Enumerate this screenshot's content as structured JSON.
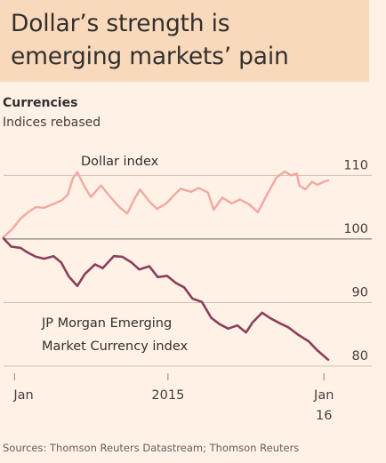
{
  "header": {
    "headline_line1": "Dollar’s strength is",
    "headline_line2": "emerging markets’ pain"
  },
  "subtitle": "Currencies",
  "subsubtitle": "Indices rebased",
  "source": "Sources: Thomson Reuters Datastream; Thomson Reuters",
  "colors": {
    "background": "#fff1e5",
    "headline_box": "#f9d9bb",
    "dollar": "#f2a8a0",
    "em": "#8c3e5c",
    "grid": "#ccc1b7",
    "baseline": "#8a8580"
  },
  "chart_data": {
    "type": "line",
    "ylim": [
      80,
      112
    ],
    "yticks": [
      80,
      90,
      100,
      110
    ],
    "grid": true,
    "xlim": [
      "2014-12-19",
      "2016-01-06"
    ],
    "xticks": [
      {
        "date": "2015-01-01",
        "label": "Jan"
      },
      {
        "date": "2015-07-01",
        "label": "2015"
      },
      {
        "date": "2016-01-01",
        "label": "Jan",
        "label2": "16"
      }
    ],
    "series": [
      {
        "name": "Dollar index",
        "color": "#f2a8a0",
        "points": [
          [
            "2014-12-19",
            100.3
          ],
          [
            "2014-12-29",
            101.5
          ],
          [
            "2015-01-08",
            103.2
          ],
          [
            "2015-01-16",
            104.1
          ],
          [
            "2015-01-26",
            105.0
          ],
          [
            "2015-02-05",
            104.9
          ],
          [
            "2015-02-16",
            105.5
          ],
          [
            "2015-02-26",
            106.1
          ],
          [
            "2015-03-05",
            107.0
          ],
          [
            "2015-03-11",
            109.6
          ],
          [
            "2015-03-16",
            110.5
          ],
          [
            "2015-03-25",
            108.1
          ],
          [
            "2015-04-01",
            106.6
          ],
          [
            "2015-04-13",
            108.4
          ],
          [
            "2015-04-22",
            106.9
          ],
          [
            "2015-05-04",
            105.1
          ],
          [
            "2015-05-14",
            104.0
          ],
          [
            "2015-05-22",
            106.2
          ],
          [
            "2015-05-29",
            107.8
          ],
          [
            "2015-06-09",
            105.9
          ],
          [
            "2015-06-18",
            104.7
          ],
          [
            "2015-06-29",
            105.6
          ],
          [
            "2015-07-09",
            107.0
          ],
          [
            "2015-07-16",
            107.9
          ],
          [
            "2015-07-28",
            107.4
          ],
          [
            "2015-08-06",
            108.0
          ],
          [
            "2015-08-17",
            107.3
          ],
          [
            "2015-08-24",
            104.6
          ],
          [
            "2015-09-03",
            106.5
          ],
          [
            "2015-09-14",
            105.6
          ],
          [
            "2015-09-24",
            106.2
          ],
          [
            "2015-10-05",
            105.4
          ],
          [
            "2015-10-15",
            104.2
          ],
          [
            "2015-10-26",
            107.0
          ],
          [
            "2015-11-06",
            109.7
          ],
          [
            "2015-11-16",
            110.6
          ],
          [
            "2015-11-23",
            110.0
          ],
          [
            "2015-11-30",
            110.3
          ],
          [
            "2015-12-03",
            108.4
          ],
          [
            "2015-12-10",
            107.8
          ],
          [
            "2015-12-18",
            109.0
          ],
          [
            "2015-12-24",
            108.5
          ],
          [
            "2016-01-01",
            109.0
          ],
          [
            "2016-01-06",
            109.2
          ]
        ]
      },
      {
        "name": "JP Morgan Emerging Market Currency index",
        "color": "#8c3e5c",
        "points": [
          [
            "2014-12-19",
            100.1
          ],
          [
            "2014-12-28",
            98.8
          ],
          [
            "2015-01-08",
            98.6
          ],
          [
            "2015-01-16",
            97.9
          ],
          [
            "2015-01-26",
            97.2
          ],
          [
            "2015-02-05",
            96.9
          ],
          [
            "2015-02-16",
            97.3
          ],
          [
            "2015-02-25",
            96.3
          ],
          [
            "2015-03-06",
            94.1
          ],
          [
            "2015-03-16",
            92.6
          ],
          [
            "2015-03-25",
            94.5
          ],
          [
            "2015-04-06",
            96.0
          ],
          [
            "2015-04-15",
            95.4
          ],
          [
            "2015-04-28",
            97.3
          ],
          [
            "2015-05-08",
            97.2
          ],
          [
            "2015-05-19",
            96.3
          ],
          [
            "2015-05-28",
            95.2
          ],
          [
            "2015-06-09",
            95.7
          ],
          [
            "2015-06-19",
            94.0
          ],
          [
            "2015-06-30",
            94.2
          ],
          [
            "2015-07-10",
            93.1
          ],
          [
            "2015-07-20",
            92.4
          ],
          [
            "2015-07-30",
            90.6
          ],
          [
            "2015-08-10",
            90.1
          ],
          [
            "2015-08-21",
            87.6
          ],
          [
            "2015-08-31",
            86.6
          ],
          [
            "2015-09-10",
            85.9
          ],
          [
            "2015-09-21",
            86.4
          ],
          [
            "2015-10-01",
            85.3
          ],
          [
            "2015-10-09",
            86.9
          ],
          [
            "2015-10-20",
            88.4
          ],
          [
            "2015-10-29",
            87.6
          ],
          [
            "2015-11-09",
            86.8
          ],
          [
            "2015-11-20",
            86.1
          ],
          [
            "2015-12-02",
            84.9
          ],
          [
            "2015-12-14",
            83.9
          ],
          [
            "2015-12-24",
            82.5
          ],
          [
            "2016-01-01",
            81.6
          ],
          [
            "2016-01-06",
            81.0
          ]
        ]
      }
    ],
    "annotations": [
      {
        "text_lines": [
          "Dollar index"
        ],
        "series": "Dollar index"
      },
      {
        "text_lines": [
          "JP Morgan Emerging",
          "Market Currency index"
        ],
        "series": "JP Morgan Emerging Market Currency index"
      }
    ]
  }
}
